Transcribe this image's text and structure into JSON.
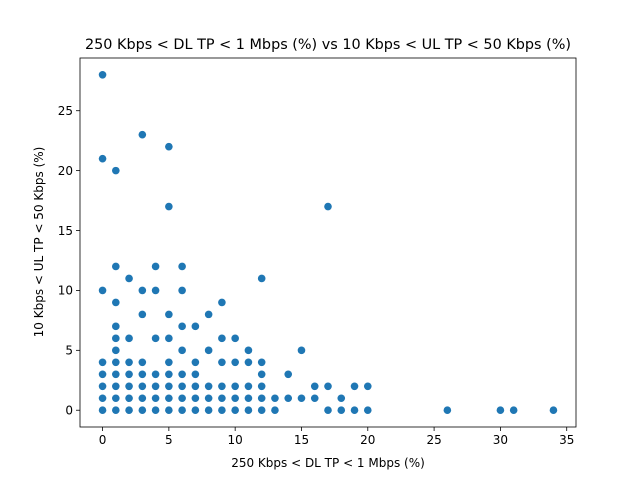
{
  "chart_data": {
    "type": "scatter",
    "title": "250 Kbps < DL TP < 1 Mbps (%) vs 10 Kbps < UL TP < 50 Kbps (%)",
    "xlabel": "250 Kbps < DL TP < 1 Mbps (%)",
    "ylabel": "10 Kbps < UL TP < 50 Kbps (%)",
    "xlim": [
      -1.7,
      35.7
    ],
    "ylim": [
      -1.4,
      29.4
    ],
    "xticks": [
      0,
      5,
      10,
      15,
      20,
      25,
      30,
      35
    ],
    "yticks": [
      0,
      5,
      10,
      15,
      20,
      25
    ],
    "grid": false,
    "marker_color": "#1f77b4",
    "points": [
      [
        0,
        28
      ],
      [
        0,
        21
      ],
      [
        0,
        10
      ],
      [
        0,
        4
      ],
      [
        0,
        3
      ],
      [
        0,
        2
      ],
      [
        0,
        1
      ],
      [
        0,
        0
      ],
      [
        1,
        20
      ],
      [
        1,
        12
      ],
      [
        1,
        9
      ],
      [
        1,
        7
      ],
      [
        1,
        6
      ],
      [
        1,
        5
      ],
      [
        1,
        4
      ],
      [
        1,
        3
      ],
      [
        1,
        2
      ],
      [
        1,
        1
      ],
      [
        1,
        0
      ],
      [
        2,
        11
      ],
      [
        2,
        6
      ],
      [
        2,
        4
      ],
      [
        2,
        3
      ],
      [
        2,
        2
      ],
      [
        2,
        1
      ],
      [
        2,
        0
      ],
      [
        3,
        23
      ],
      [
        3,
        10
      ],
      [
        3,
        8
      ],
      [
        3,
        4
      ],
      [
        3,
        3
      ],
      [
        3,
        2
      ],
      [
        3,
        1
      ],
      [
        3,
        0
      ],
      [
        4,
        12
      ],
      [
        4,
        10
      ],
      [
        4,
        6
      ],
      [
        4,
        3
      ],
      [
        4,
        2
      ],
      [
        4,
        1
      ],
      [
        4,
        0
      ],
      [
        5,
        22
      ],
      [
        5,
        17
      ],
      [
        5,
        8
      ],
      [
        5,
        6
      ],
      [
        5,
        4
      ],
      [
        5,
        3
      ],
      [
        5,
        2
      ],
      [
        5,
        1
      ],
      [
        5,
        0
      ],
      [
        6,
        12
      ],
      [
        6,
        10
      ],
      [
        6,
        7
      ],
      [
        6,
        5
      ],
      [
        6,
        3
      ],
      [
        6,
        2
      ],
      [
        6,
        1
      ],
      [
        6,
        0
      ],
      [
        7,
        7
      ],
      [
        7,
        4
      ],
      [
        7,
        3
      ],
      [
        7,
        2
      ],
      [
        7,
        1
      ],
      [
        7,
        0
      ],
      [
        8,
        8
      ],
      [
        8,
        5
      ],
      [
        8,
        2
      ],
      [
        8,
        1
      ],
      [
        8,
        0
      ],
      [
        9,
        9
      ],
      [
        9,
        6
      ],
      [
        9,
        4
      ],
      [
        9,
        2
      ],
      [
        9,
        1
      ],
      [
        9,
        0
      ],
      [
        10,
        6
      ],
      [
        10,
        4
      ],
      [
        10,
        2
      ],
      [
        10,
        1
      ],
      [
        10,
        0
      ],
      [
        11,
        5
      ],
      [
        11,
        4
      ],
      [
        11,
        2
      ],
      [
        11,
        1
      ],
      [
        11,
        0
      ],
      [
        12,
        11
      ],
      [
        12,
        4
      ],
      [
        12,
        3
      ],
      [
        12,
        2
      ],
      [
        12,
        1
      ],
      [
        12,
        0
      ],
      [
        13,
        1
      ],
      [
        13,
        0
      ],
      [
        14,
        3
      ],
      [
        14,
        1
      ],
      [
        15,
        5
      ],
      [
        15,
        1
      ],
      [
        16,
        2
      ],
      [
        16,
        1
      ],
      [
        17,
        17
      ],
      [
        17,
        2
      ],
      [
        17,
        0
      ],
      [
        18,
        1
      ],
      [
        18,
        0
      ],
      [
        19,
        2
      ],
      [
        19,
        0
      ],
      [
        20,
        2
      ],
      [
        20,
        0
      ],
      [
        26,
        0
      ],
      [
        30,
        0
      ],
      [
        31,
        0
      ],
      [
        34,
        0
      ]
    ]
  }
}
